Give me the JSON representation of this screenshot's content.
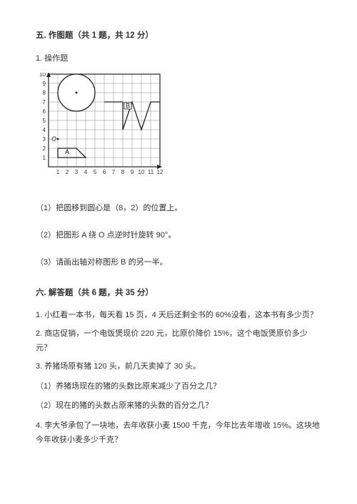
{
  "section5": {
    "header": "五. 作图题（共 1 题，共 12 分）",
    "problem1": {
      "title": "1. 操作题",
      "sub1": "（1）把圆移到圆心是（8，2）的位置上。",
      "sub2": "（2）把图形 A 绕 O 点逆时针旋转 90°。",
      "sub3": "（3）请画出轴对称图形 B 的另一半。"
    }
  },
  "section6": {
    "header": "六. 解答题（共 6 题，共 35 分）",
    "p1": "1. 小红看一本书，每天看 15 页，4 天后还剩全书的 60%没看，这本书有多少页？",
    "p2": "2. 商店促销，一个电饭煲现价 220 元，比原价降价 15%，这个电饭煲原价多少元？",
    "p3": "3. 养猪场原有猪 120 头，前几天卖掉了 30 头。",
    "p3sub1": "（1）养猪场现在的猪的头数比原来减少了百分之几？",
    "p3sub2": "（2）现在的猪的头数占原来猪的头数的百分之几？",
    "p4": "4. 李大爷承包了一块地，去年收获小麦 1500 千克，今年比去年增收 15%。这块地今年收获小麦多少千克？"
  },
  "figure": {
    "grid": {
      "cols": 12,
      "rows": 10,
      "cellSize": 13,
      "offsetX": 18,
      "offsetY": 2,
      "grid_color": "#888",
      "bg_color": "#ffffff"
    },
    "axis_labels_x": [
      "1",
      "2",
      "3",
      "4",
      "5",
      "6",
      "7",
      "8",
      "9",
      "10",
      "11",
      "12"
    ],
    "axis_labels_y": [
      "1",
      "2",
      "3",
      "4",
      "5",
      "6",
      "7",
      "8",
      "9",
      "10"
    ],
    "circle": {
      "cx_grid": 3,
      "cy_grid": 8,
      "r_grid": 2,
      "stroke": "#222",
      "fill": "#fff"
    },
    "origin_label": "O",
    "shapeA": {
      "label": "A",
      "points_grid": [
        [
          1,
          2
        ],
        [
          3,
          2
        ],
        [
          4,
          1
        ],
        [
          1,
          1
        ]
      ],
      "stroke": "#222"
    },
    "shapeB": {
      "label": "B",
      "points_grid": [
        [
          6,
          7
        ],
        [
          8,
          7
        ],
        [
          8,
          4
        ],
        [
          9,
          7
        ],
        [
          10,
          4
        ],
        [
          11,
          7
        ],
        [
          12,
          7
        ]
      ],
      "stroke": "#222"
    },
    "label_fontsize": 9,
    "axis_fontsize": 8
  }
}
